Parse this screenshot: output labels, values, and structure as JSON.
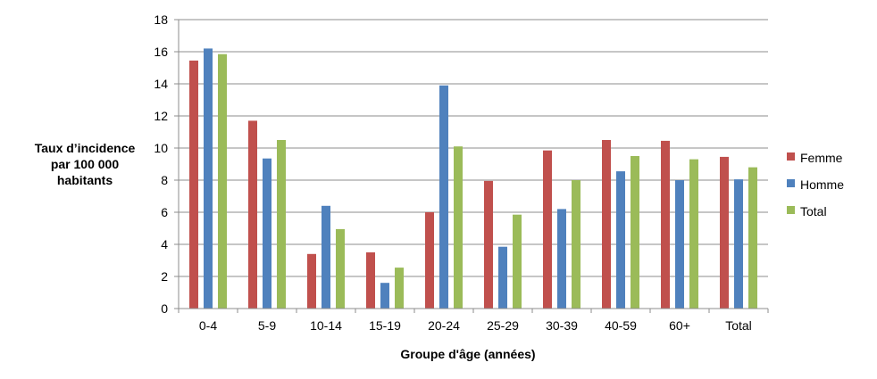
{
  "chart_data": {
    "type": "bar",
    "title": "",
    "ylabel_lines": [
      "Taux d’incidence",
      "par 100 000",
      "habitants"
    ],
    "xlabel": "Groupe d'âge (années)",
    "ylim": [
      0,
      18
    ],
    "yticks": [
      0,
      2,
      4,
      6,
      8,
      10,
      12,
      14,
      16,
      18
    ],
    "grid": true,
    "legend_position": "right",
    "categories": [
      "0-4",
      "5-9",
      "10-14",
      "15-19",
      "20-24",
      "25-29",
      "30-39",
      "40-59",
      "60+",
      "Total"
    ],
    "series": [
      {
        "name": "Femme",
        "color": "#C0504D",
        "values": [
          15.45,
          11.7,
          3.4,
          3.5,
          6.0,
          7.95,
          9.85,
          10.5,
          10.45,
          9.45
        ]
      },
      {
        "name": "Homme",
        "color": "#4F81BD",
        "values": [
          16.2,
          9.35,
          6.4,
          1.6,
          13.9,
          3.85,
          6.2,
          8.55,
          8.0,
          8.05
        ]
      },
      {
        "name": "Total",
        "color": "#9BBB59",
        "values": [
          15.85,
          10.5,
          4.95,
          2.55,
          10.1,
          5.85,
          8.0,
          9.5,
          9.3,
          8.8
        ]
      }
    ]
  }
}
